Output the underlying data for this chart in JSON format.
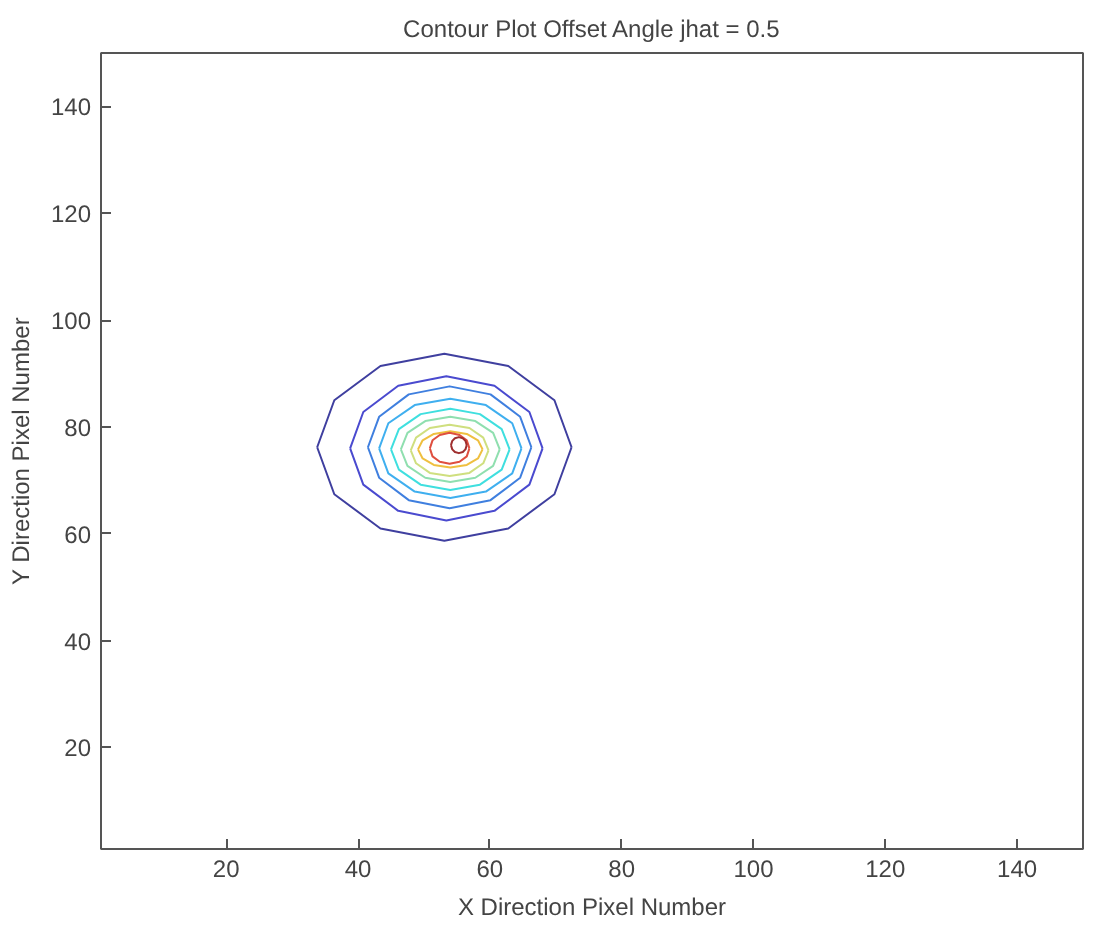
{
  "chart_data": {
    "type": "line",
    "title": "Contour Plot Offset Angle jhat = 0.5",
    "xlabel": "X Direction Pixel Number",
    "ylabel": "Y Direction Pixel Number",
    "xlim": [
      1,
      150
    ],
    "ylim": [
      1,
      150
    ],
    "xticks": [
      20,
      40,
      60,
      80,
      100,
      120,
      140
    ],
    "yticks": [
      20,
      40,
      60,
      80,
      100,
      120,
      140
    ],
    "grid": false,
    "line_style": "solid",
    "series": [
      {
        "color": "#3f3f9f",
        "x": [
          33.8,
          36.4,
          43.4,
          53.1,
          62.8,
          69.8,
          72.4
        ],
        "values": [
          76.2,
          85,
          91.4,
          93.7,
          91.4,
          85,
          76.2
        ]
      },
      {
        "color": "#3f3f9f",
        "x": [
          33.8,
          36.4,
          43.4,
          53.1,
          62.8,
          69.8,
          72.4
        ],
        "values": [
          76.2,
          67.4,
          61,
          58.7,
          61,
          67.4,
          76.2
        ]
      },
      {
        "color": "#4a4acf",
        "x": [
          38.8,
          40.8,
          46.1,
          53.4,
          60.7,
          66,
          68
        ],
        "values": [
          76,
          82.8,
          87.7,
          89.5,
          87.7,
          82.8,
          76
        ]
      },
      {
        "color": "#4a4acf",
        "x": [
          38.8,
          40.8,
          46.1,
          53.4,
          60.7,
          66,
          68
        ],
        "values": [
          76,
          69.2,
          64.3,
          62.5,
          64.3,
          69.2,
          76
        ]
      },
      {
        "color": "#3f7fdf",
        "x": [
          41.5,
          43.2,
          47.7,
          53.9,
          60.1,
          64.6,
          66.3
        ],
        "values": [
          76.2,
          81.9,
          86.1,
          87.6,
          86.1,
          81.9,
          76.2
        ]
      },
      {
        "color": "#3f7fdf",
        "x": [
          41.5,
          43.2,
          47.7,
          53.9,
          60.1,
          64.6,
          66.3
        ],
        "values": [
          76.2,
          70.5,
          66.3,
          64.8,
          66.3,
          70.5,
          76.2
        ]
      },
      {
        "color": "#3fafef",
        "x": [
          43.2,
          44.6,
          48.6,
          54,
          59.4,
          63.4,
          64.8
        ],
        "values": [
          76,
          80.7,
          84.1,
          85.3,
          84.1,
          80.7,
          76
        ]
      },
      {
        "color": "#3fafef",
        "x": [
          43.2,
          44.6,
          48.6,
          54,
          59.4,
          63.4,
          64.8
        ],
        "values": [
          76,
          71.3,
          67.9,
          66.7,
          67.9,
          71.3,
          76
        ]
      },
      {
        "color": "#3fdfdf",
        "x": [
          45,
          46.2,
          49.5,
          54,
          58.5,
          61.8,
          63
        ],
        "values": [
          75.8,
          79.6,
          82.4,
          83.4,
          82.4,
          79.6,
          75.8
        ]
      },
      {
        "color": "#3fdfdf",
        "x": [
          45,
          46.2,
          49.5,
          54,
          58.5,
          61.8,
          63
        ],
        "values": [
          75.8,
          72,
          69.2,
          68.2,
          69.2,
          72,
          75.8
        ]
      },
      {
        "color": "#8fdfaf",
        "x": [
          46.5,
          47.5,
          50.2,
          54,
          57.8,
          60.5,
          61.5
        ],
        "values": [
          75.8,
          78.9,
          81.1,
          81.9,
          81.1,
          78.9,
          75.8
        ]
      },
      {
        "color": "#8fdfaf",
        "x": [
          46.5,
          47.5,
          50.2,
          54,
          57.8,
          60.5,
          61.5
        ],
        "values": [
          75.8,
          72.7,
          70.5,
          69.7,
          70.5,
          72.7,
          75.8
        ]
      },
      {
        "color": "#cfdf7f",
        "x": [
          48,
          48.8,
          50.9,
          53.9,
          56.9,
          59,
          59.8
        ],
        "values": [
          75.6,
          78,
          79.8,
          80.4,
          79.8,
          78,
          75.6
        ]
      },
      {
        "color": "#cfdf7f",
        "x": [
          48,
          48.8,
          50.9,
          53.9,
          56.9,
          59,
          59.8
        ],
        "values": [
          75.6,
          73.2,
          71.4,
          70.8,
          71.4,
          73.2,
          75.6
        ]
      },
      {
        "color": "#efbf3f",
        "x": [
          49.1,
          49.8,
          51.5,
          54,
          56.5,
          58.2,
          58.9
        ],
        "values": [
          75.8,
          77.5,
          78.7,
          79.2,
          78.7,
          77.5,
          75.8
        ]
      },
      {
        "color": "#efbf3f",
        "x": [
          49.1,
          49.8,
          51.5,
          54,
          56.5,
          58.2,
          58.9
        ],
        "values": [
          75.8,
          74.1,
          72.9,
          72.4,
          72.9,
          74.1,
          75.8
        ]
      },
      {
        "color": "#df4f3f",
        "x": [
          50.9,
          51.3,
          52.4,
          53.9,
          55.4,
          56.5,
          56.9
        ],
        "values": [
          76,
          77.5,
          78.5,
          78.9,
          78.5,
          77.5,
          76
        ]
      },
      {
        "color": "#df4f3f",
        "x": [
          50.9,
          51.3,
          52.4,
          53.9,
          55.4,
          56.5,
          56.9
        ],
        "values": [
          76,
          74.5,
          73.5,
          73.1,
          73.5,
          74.5,
          76
        ]
      },
      {
        "color": "#9f2f2f",
        "x": [
          54.1,
          54.3,
          54.7,
          55.3,
          55.9,
          56.3,
          56.5
        ],
        "values": [
          76.6,
          77.4,
          77.9,
          78.1,
          77.9,
          77.4,
          76.6
        ]
      },
      {
        "color": "#9f2f2f",
        "x": [
          54.1,
          54.3,
          54.7,
          55.3,
          55.9,
          56.3,
          56.5
        ],
        "values": [
          76.6,
          75.8,
          75.3,
          75.1,
          75.3,
          75.8,
          76.6
        ]
      }
    ]
  }
}
